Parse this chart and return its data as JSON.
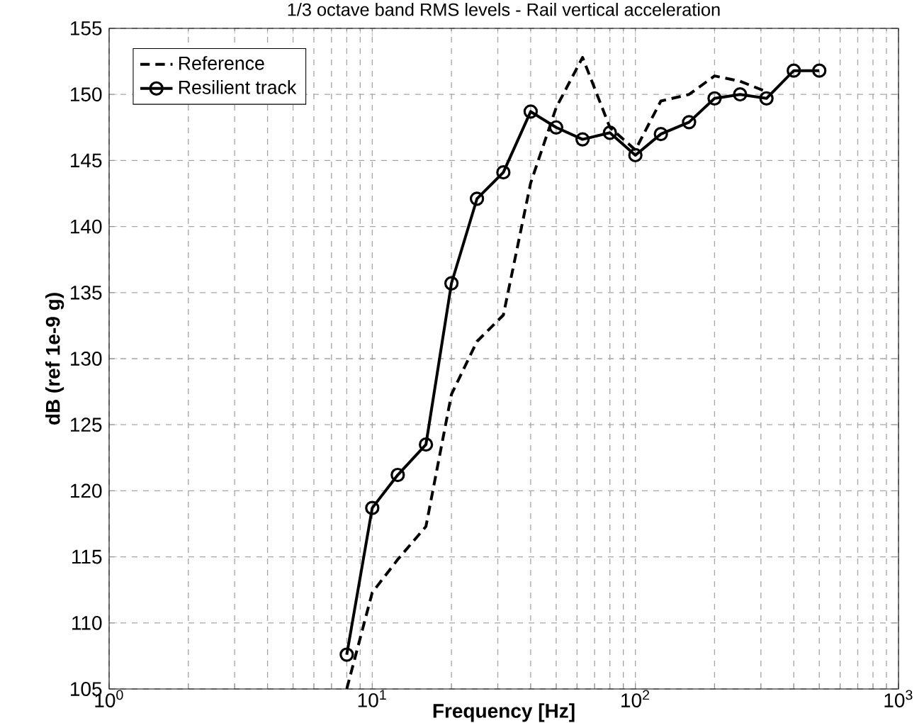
{
  "chart_data": {
    "type": "line",
    "title": "1/3 octave band RMS levels - Rail vertical acceleration",
    "xlabel": "Frequency [Hz]",
    "ylabel": "dB (ref 1e-9 g)",
    "log": "x",
    "grid": true,
    "legend": "top left",
    "xlim": [
      1,
      1000
    ],
    "ylim": [
      105,
      155
    ],
    "xticks": [
      {
        "value": 1,
        "label": "10$^{0}$"
      },
      {
        "value": 10,
        "label": "10$^{1}$"
      },
      {
        "value": 100,
        "label": "10$^{2}$"
      },
      {
        "value": 1000,
        "label": "10$^{3}$"
      }
    ],
    "yticks": [
      105,
      110,
      115,
      120,
      125,
      130,
      135,
      140,
      145,
      150,
      155
    ],
    "series": [
      {
        "name": "Reference",
        "color": "#000000",
        "line_style": "dashed",
        "marker": "none",
        "x": [
          8,
          10,
          12.5,
          16,
          20,
          25,
          31.5,
          40,
          50,
          63,
          80,
          100,
          125,
          160,
          200,
          250,
          315
        ],
        "values": [
          105,
          112.3,
          114.8,
          117.3,
          127.3,
          131.3,
          133.3,
          143.3,
          149,
          152.8,
          147.5,
          145.8,
          149.5,
          150,
          151.4,
          151,
          150.2
        ]
      },
      {
        "name": "Resilient track",
        "color": "#000000",
        "line_style": "solid",
        "marker": "circle",
        "x": [
          8,
          10,
          12.5,
          16,
          20,
          25,
          31.5,
          40,
          50,
          63,
          80,
          100,
          125,
          160,
          200,
          250,
          315,
          400,
          500
        ],
        "values": [
          107.6,
          118.7,
          121.2,
          123.5,
          135.7,
          142.1,
          144.1,
          148.7,
          147.5,
          146.6,
          147.1,
          145.4,
          147,
          147.9,
          149.7,
          150,
          149.7,
          151.8,
          151.8
        ]
      }
    ]
  }
}
